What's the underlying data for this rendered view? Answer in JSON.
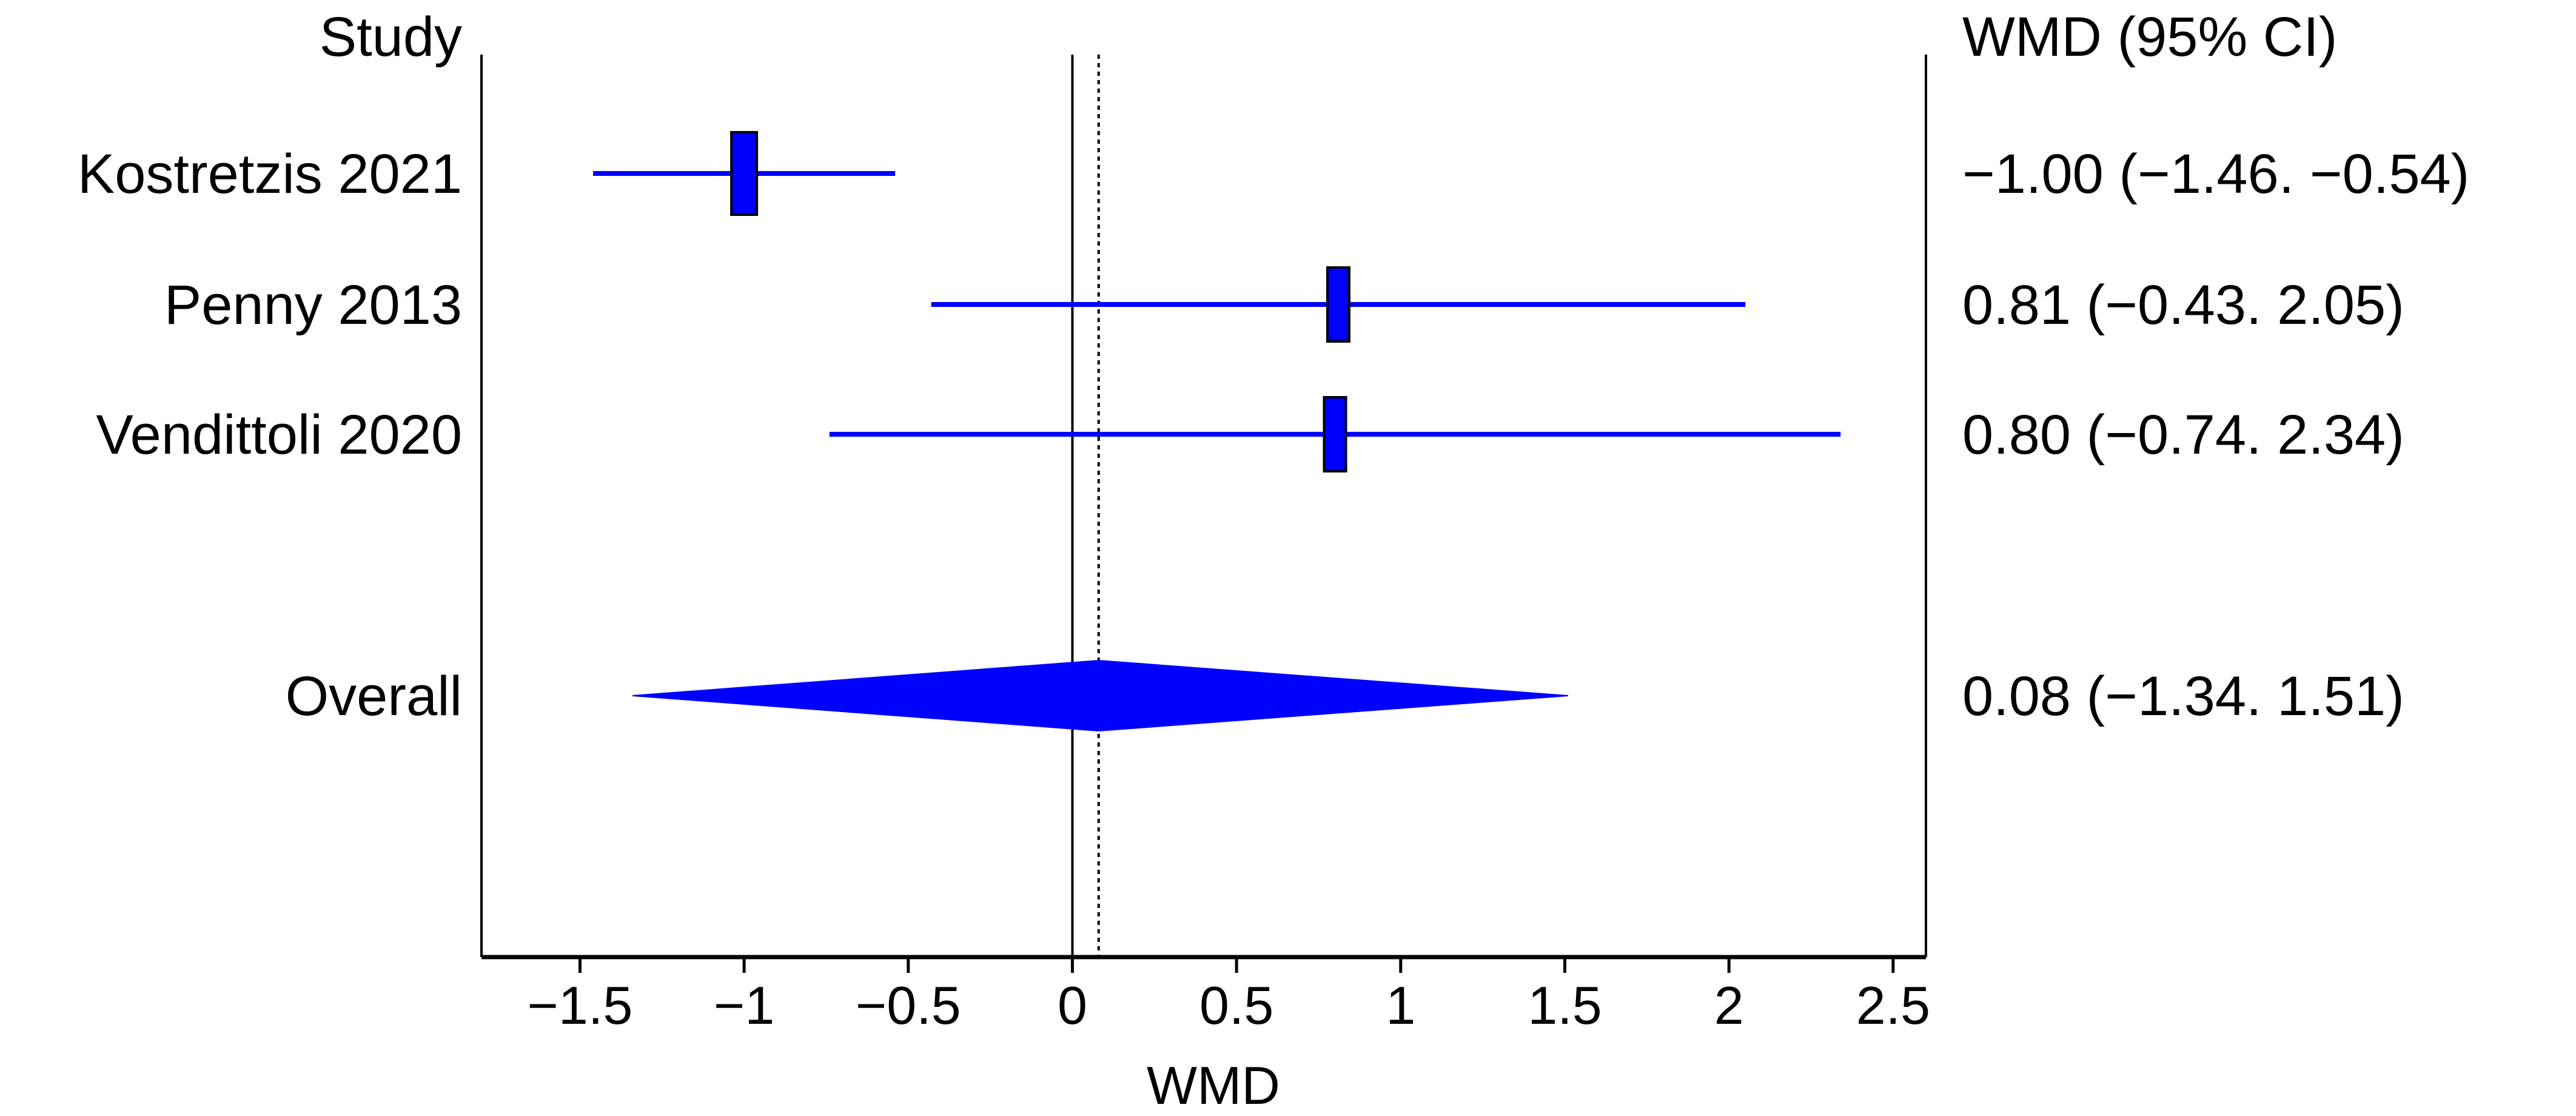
{
  "chart_data": {
    "type": "forest",
    "study_header": "Study",
    "estimate_header": "WMD (95% CI)",
    "xlabel": "WMD",
    "xlim": [
      -1.8,
      2.6
    ],
    "xticks": [
      "−1.5",
      "−1",
      "−0.5",
      "0",
      "0.5",
      "1",
      "1.5",
      "2",
      "2.5"
    ],
    "xtick_values": [
      -1.5,
      -1,
      -0.5,
      0,
      0.5,
      1,
      1.5,
      2,
      2.5
    ],
    "null_line": 0,
    "pooled_line": 0.08,
    "colors": {
      "marker": "#0000ff",
      "axis": "#000000"
    },
    "studies": [
      {
        "name": "Kostretzis 2021",
        "wmd": -1.0,
        "lower": -1.46,
        "upper": -0.54,
        "label": "−1.00 (−1.46. −0.54)",
        "weight": 0.3
      },
      {
        "name": "Penny 2013",
        "wmd": 0.81,
        "lower": -0.43,
        "upper": 2.05,
        "label": "0.81 (−0.43. 2.05)",
        "weight": 0.3
      },
      {
        "name": "Vendittoli 2020",
        "wmd": 0.8,
        "lower": -0.74,
        "upper": 2.34,
        "label": "0.80 (−0.74. 2.34)",
        "weight": 0.3
      }
    ],
    "overall": {
      "name": "Overall",
      "wmd": 0.08,
      "lower": -1.34,
      "upper": 1.51,
      "label": "0.08 (−1.34. 1.51)"
    }
  }
}
